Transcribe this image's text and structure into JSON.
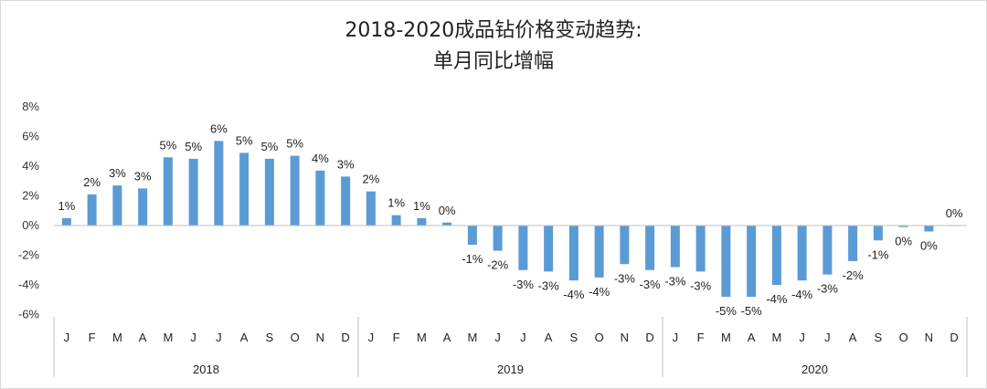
{
  "chart_data": {
    "type": "bar",
    "title": "2018-2020成品钻价格变动趋势:",
    "subtitle": "单月同比增幅",
    "xlabel": "",
    "ylabel": "",
    "ylim": [
      -6,
      8
    ],
    "y_ticks": [
      "8%",
      "6%",
      "4%",
      "2%",
      "0%",
      "-2%",
      "-4%",
      "-6%"
    ],
    "y_tick_values": [
      8,
      6,
      4,
      2,
      0,
      -2,
      -4,
      -6
    ],
    "color": "#5b9bd5",
    "grid": false,
    "legend": "none",
    "months": [
      "J",
      "F",
      "M",
      "A",
      "M",
      "J",
      "J",
      "A",
      "S",
      "O",
      "N",
      "D"
    ],
    "years": [
      "2018",
      "2019",
      "2020"
    ],
    "values": [
      0.5,
      2.1,
      2.7,
      2.5,
      4.6,
      4.5,
      5.7,
      4.9,
      4.5,
      4.7,
      3.7,
      3.3,
      2.3,
      0.7,
      0.5,
      0.2,
      -1.3,
      -1.7,
      -3.0,
      -3.1,
      -3.7,
      -3.5,
      -2.6,
      -3.0,
      -2.8,
      -3.1,
      -4.8,
      -4.8,
      -4.0,
      -3.7,
      -3.3,
      -2.4,
      -1.0,
      -0.1,
      -0.4,
      0.0
    ],
    "data_labels": [
      "1%",
      "2%",
      "3%",
      "3%",
      "5%",
      "5%",
      "6%",
      "5%",
      "5%",
      "5%",
      "4%",
      "3%",
      "2%",
      "1%",
      "1%",
      "0%",
      "-1%",
      "-2%",
      "-3%",
      "-3%",
      "-4%",
      "-4%",
      "-3%",
      "-3%",
      "-3%",
      "-3%",
      "-5%",
      "-5%",
      "-4%",
      "-4%",
      "-3%",
      "-2%",
      "-1%",
      "0%",
      "0%",
      "0%"
    ]
  }
}
